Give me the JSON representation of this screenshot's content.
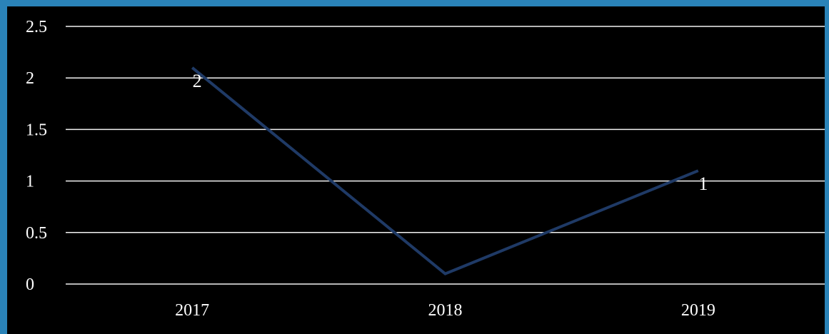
{
  "chart_data": {
    "type": "line",
    "categories": [
      "2017",
      "2018",
      "2019"
    ],
    "series": [
      {
        "values": [
          2.1,
          0.1,
          1.1
        ],
        "data_labels": [
          "2",
          "",
          "1"
        ],
        "color": "#1f3a66"
      }
    ],
    "y_ticks": [
      "0",
      "0.5",
      "1",
      "1.5",
      "2",
      "2.5"
    ],
    "ylim": [
      0,
      2.5
    ],
    "grid": true,
    "background_color": "#000000",
    "frame_color": "#2a83b8",
    "text_color": "#ffffff"
  }
}
